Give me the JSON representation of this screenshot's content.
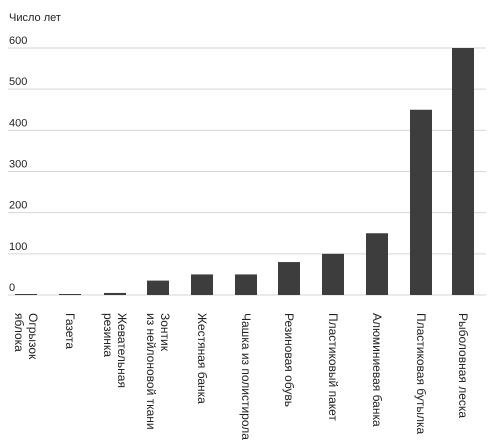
{
  "chart_data": {
    "type": "bar",
    "ylabel": "Число лет",
    "xlabel": "",
    "title": "",
    "ylim": [
      0,
      650
    ],
    "yticks": [
      0,
      100,
      200,
      300,
      400,
      500,
      600
    ],
    "grid": "horizontal",
    "categories": [
      [
        "Огрызок",
        "яблока"
      ],
      [
        "Газета"
      ],
      [
        "Жевательная",
        "резинка"
      ],
      [
        "Зонтик",
        "из нейлоновой ткани"
      ],
      [
        "Жестяная банка"
      ],
      [
        "Чашка из полистирола"
      ],
      [
        "Резиновая обувь"
      ],
      [
        "Пластиковый пакет"
      ],
      [
        "Алюминиевая банка"
      ],
      [
        "Пластиковая бутылка"
      ],
      [
        "Рыболовная леска"
      ]
    ],
    "values": [
      0.1,
      0.5,
      5,
      35,
      50,
      50,
      80,
      100,
      150,
      450,
      600
    ],
    "colors": {
      "bar": "#3d3d3d",
      "grid": "#d6d6d6",
      "text": "#222222"
    }
  }
}
